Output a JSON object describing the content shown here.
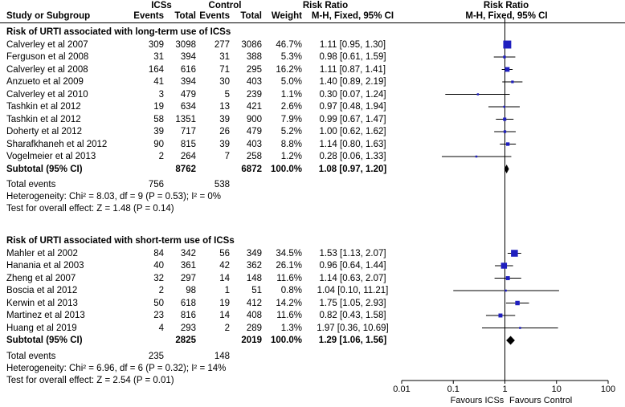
{
  "header": {
    "group1": "ICSs",
    "group2": "Control",
    "rr_title_left": "Risk Ratio",
    "rr_title_right": "Risk Ratio",
    "col_study": "Study or Subgroup",
    "col_events1": "Events",
    "col_total1": "Total",
    "col_events2": "Events",
    "col_total2": "Total",
    "col_weight": "Weight",
    "col_method_left": "M-H, Fixed, 95% CI",
    "col_method_right": "M-H, Fixed, 95% CI"
  },
  "subgroups": [
    {
      "title": "Risk of URTI associated with long-term use of ICSs",
      "studies": [
        {
          "name": "Calverley et al 2007",
          "e1": "309",
          "t1": "3098",
          "e2": "277",
          "t2": "3086",
          "weight": "46.7%",
          "ci": "1.11 [0.95, 1.30]"
        },
        {
          "name": "Ferguson  et al 2008",
          "e1": "31",
          "t1": "394",
          "e2": "31",
          "t2": "388",
          "weight": "5.3%",
          "ci": "0.98 [0.61, 1.59]"
        },
        {
          "name": "Calverley et al 2008",
          "e1": "164",
          "t1": "616",
          "e2": "71",
          "t2": "295",
          "weight": "16.2%",
          "ci": "1.11 [0.87, 1.41]"
        },
        {
          "name": "Anzueto  et al 2009",
          "e1": "41",
          "t1": "394",
          "e2": "30",
          "t2": "403",
          "weight": "5.0%",
          "ci": "1.40 [0.89, 2.19]"
        },
        {
          "name": "Calverley et al 2010",
          "e1": "3",
          "t1": "479",
          "e2": "5",
          "t2": "239",
          "weight": "1.1%",
          "ci": "0.30 [0.07, 1.24]"
        },
        {
          "name": "Tashkin et al 2012",
          "e1": "19",
          "t1": "634",
          "e2": "13",
          "t2": "421",
          "weight": "2.6%",
          "ci": "0.97 [0.48, 1.94]"
        },
        {
          "name": "Tashkin et al 2012",
          "e1": "58",
          "t1": "1351",
          "e2": "39",
          "t2": "900",
          "weight": "7.9%",
          "ci": "0.99 [0.67, 1.47]"
        },
        {
          "name": "Doherty et al 2012",
          "e1": "39",
          "t1": "717",
          "e2": "26",
          "t2": "479",
          "weight": "5.2%",
          "ci": "1.00 [0.62, 1.62]"
        },
        {
          "name": "Sharafkhaneh  et al 2012",
          "e1": "90",
          "t1": "815",
          "e2": "39",
          "t2": "403",
          "weight": "8.8%",
          "ci": "1.14 [0.80, 1.63]"
        },
        {
          "name": "Vogelmeier et al 2013",
          "e1": "2",
          "t1": "264",
          "e2": "7",
          "t2": "258",
          "weight": "1.2%",
          "ci": "0.28 [0.06, 1.33]"
        }
      ],
      "subtotal": {
        "label": "Subtotal (95% CI)",
        "t1": "8762",
        "t2": "6872",
        "weight": "100.0%",
        "ci": "1.08 [0.97, 1.20]"
      },
      "total_events": {
        "label": "Total events",
        "e1": "756",
        "e2": "538"
      },
      "heterogeneity": "Heterogeneity: Chi² = 8.03, df = 9 (P = 0.53); I² = 0%",
      "overall": "Test for overall effect: Z = 1.48 (P = 0.14)"
    },
    {
      "title": "Risk of URTI associated with short-term use of ICSs",
      "studies": [
        {
          "name": "Mahler et al  2002",
          "e1": "84",
          "t1": "342",
          "e2": "56",
          "t2": "349",
          "weight": "34.5%",
          "ci": "1.53 [1.13, 2.07]"
        },
        {
          "name": "Hanania et al 2003",
          "e1": "40",
          "t1": "361",
          "e2": "42",
          "t2": "362",
          "weight": "26.1%",
          "ci": "0.96 [0.64, 1.44]"
        },
        {
          "name": "Zheng et al 2007",
          "e1": "32",
          "t1": "297",
          "e2": "14",
          "t2": "148",
          "weight": "11.6%",
          "ci": "1.14 [0.63, 2.07]"
        },
        {
          "name": "Boscia et al 2012",
          "e1": "2",
          "t1": "98",
          "e2": "1",
          "t2": "51",
          "weight": "0.8%",
          "ci": "1.04 [0.10, 11.21]"
        },
        {
          "name": "Kerwin et al 2013",
          "e1": "50",
          "t1": "618",
          "e2": "19",
          "t2": "412",
          "weight": "14.2%",
          "ci": "1.75 [1.05, 2.93]"
        },
        {
          "name": "Martinez et al 2013",
          "e1": "23",
          "t1": "816",
          "e2": "14",
          "t2": "408",
          "weight": "11.6%",
          "ci": "0.82 [0.43, 1.58]"
        },
        {
          "name": "Huang et al 2019",
          "e1": "4",
          "t1": "293",
          "e2": "2",
          "t2": "289",
          "weight": "1.3%",
          "ci": "1.97 [0.36, 10.69]"
        }
      ],
      "subtotal": {
        "label": "Subtotal (95% CI)",
        "t1": "2825",
        "t2": "2019",
        "weight": "100.0%",
        "ci": "1.29 [1.06, 1.56]"
      },
      "total_events": {
        "label": "Total events",
        "e1": "235",
        "e2": "148"
      },
      "heterogeneity": "Heterogeneity: Chi² = 6.96, df = 6 (P = 0.32); I² = 14%",
      "overall": "Test for overall effect: Z = 2.54 (P = 0.01)"
    }
  ],
  "chart_data": {
    "type": "forest",
    "scale": "log",
    "xlim": [
      0.01,
      100
    ],
    "ticks": [
      "0.01",
      "0.1",
      "1",
      "10",
      "100"
    ],
    "tick_values": [
      0.01,
      0.1,
      1,
      10,
      100
    ],
    "favours_left": "Favours ICSs",
    "favours_right": "Favours Control",
    "colors": {
      "square": "#1f1fbf",
      "line": "#000000",
      "diamond": "#000000"
    },
    "series": [
      {
        "name": "Risk of URTI associated with long-term use of ICSs",
        "points": [
          {
            "rr": 1.11,
            "lo": 0.95,
            "hi": 1.3,
            "w": 46.7
          },
          {
            "rr": 0.98,
            "lo": 0.61,
            "hi": 1.59,
            "w": 5.3
          },
          {
            "rr": 1.11,
            "lo": 0.87,
            "hi": 1.41,
            "w": 16.2
          },
          {
            "rr": 1.4,
            "lo": 0.89,
            "hi": 2.19,
            "w": 5.0
          },
          {
            "rr": 0.3,
            "lo": 0.07,
            "hi": 1.24,
            "w": 1.1
          },
          {
            "rr": 0.97,
            "lo": 0.48,
            "hi": 1.94,
            "w": 2.6
          },
          {
            "rr": 0.99,
            "lo": 0.67,
            "hi": 1.47,
            "w": 7.9
          },
          {
            "rr": 1.0,
            "lo": 0.62,
            "hi": 1.62,
            "w": 5.2
          },
          {
            "rr": 1.14,
            "lo": 0.8,
            "hi": 1.63,
            "w": 8.8
          },
          {
            "rr": 0.28,
            "lo": 0.06,
            "hi": 1.33,
            "w": 1.2
          }
        ],
        "pooled": {
          "rr": 1.08,
          "lo": 0.97,
          "hi": 1.2
        }
      },
      {
        "name": "Risk of URTI associated with short-term use of ICSs",
        "points": [
          {
            "rr": 1.53,
            "lo": 1.13,
            "hi": 2.07,
            "w": 34.5
          },
          {
            "rr": 0.96,
            "lo": 0.64,
            "hi": 1.44,
            "w": 26.1
          },
          {
            "rr": 1.14,
            "lo": 0.63,
            "hi": 2.07,
            "w": 11.6
          },
          {
            "rr": 1.04,
            "lo": 0.1,
            "hi": 11.21,
            "w": 0.8
          },
          {
            "rr": 1.75,
            "lo": 1.05,
            "hi": 2.93,
            "w": 14.2
          },
          {
            "rr": 0.82,
            "lo": 0.43,
            "hi": 1.58,
            "w": 11.6
          },
          {
            "rr": 1.97,
            "lo": 0.36,
            "hi": 10.69,
            "w": 1.3
          }
        ],
        "pooled": {
          "rr": 1.29,
          "lo": 1.06,
          "hi": 1.56
        }
      }
    ]
  }
}
